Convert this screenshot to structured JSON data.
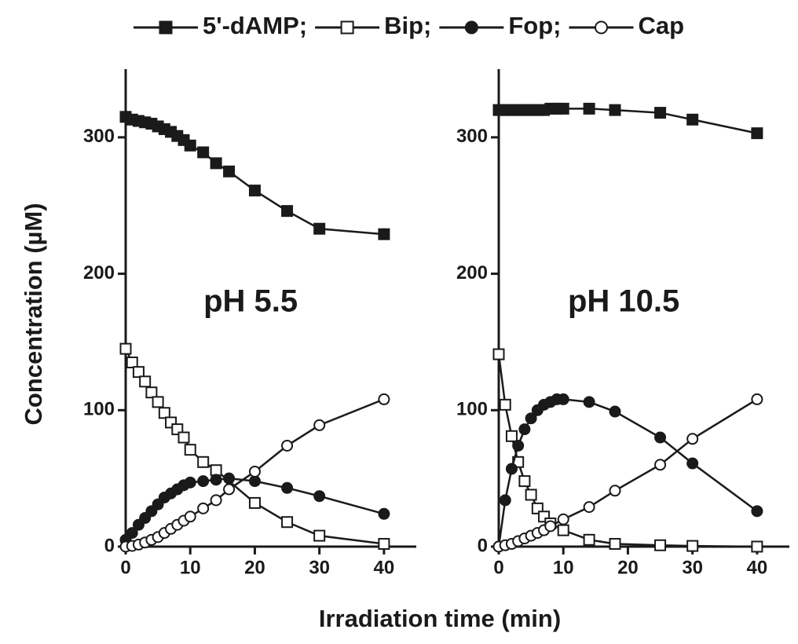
{
  "chart_data": [
    {
      "type": "line",
      "annotation": "pH 5.5",
      "xlabel": "Irradiation time (min)",
      "ylabel": "Concentration (µM)",
      "xlim": [
        0,
        45
      ],
      "ylim": [
        0,
        350
      ],
      "xticks": [
        0,
        10,
        20,
        30,
        40
      ],
      "yticks": [
        0,
        100,
        200,
        300
      ],
      "series": [
        {
          "name": "5'-dAMP;",
          "color": "#1a1a1a",
          "marker": "square",
          "filled": true,
          "x": [
            0,
            1,
            2,
            3,
            4,
            5,
            6,
            7,
            8,
            9,
            10,
            12,
            14,
            16,
            20,
            25,
            30,
            40
          ],
          "values": [
            315,
            313,
            312,
            311,
            310,
            308,
            306,
            304,
            301,
            298,
            294,
            289,
            281,
            275,
            261,
            246,
            233,
            229
          ]
        },
        {
          "name": "Bip;",
          "color": "#1a1a1a",
          "marker": "square",
          "filled": false,
          "x": [
            0,
            1,
            2,
            3,
            4,
            5,
            6,
            7,
            8,
            9,
            10,
            12,
            14,
            20,
            25,
            30,
            40
          ],
          "values": [
            145,
            135,
            128,
            121,
            113,
            106,
            98,
            91,
            86,
            80,
            71,
            62,
            56,
            32,
            18,
            8,
            2
          ]
        },
        {
          "name": "Fop;",
          "color": "#1a1a1a",
          "marker": "circle",
          "filled": true,
          "x": [
            0,
            1,
            2,
            3,
            4,
            5,
            6,
            7,
            8,
            9,
            10,
            12,
            14,
            16,
            20,
            25,
            30,
            40
          ],
          "values": [
            5,
            10,
            16,
            21,
            26,
            31,
            36,
            39,
            42,
            45,
            47,
            48,
            49,
            50,
            48,
            43,
            37,
            24
          ]
        },
        {
          "name": "Cap",
          "color": "#1a1a1a",
          "marker": "circle",
          "filled": false,
          "x": [
            0,
            1,
            2,
            3,
            4,
            5,
            6,
            7,
            8,
            9,
            10,
            12,
            14,
            16,
            20,
            25,
            30,
            40
          ],
          "values": [
            0,
            0.5,
            1.5,
            3,
            5,
            7,
            10,
            13,
            16,
            19,
            22,
            28,
            34,
            42,
            55,
            74,
            89,
            108
          ]
        }
      ]
    },
    {
      "type": "line",
      "annotation": "pH 10.5",
      "xlim": [
        0,
        45
      ],
      "ylim": [
        0,
        350
      ],
      "xticks": [
        0,
        10,
        20,
        30,
        40
      ],
      "yticks": [
        0,
        100,
        200,
        300
      ],
      "series": [
        {
          "color": "#1a1a1a",
          "marker": "square",
          "filled": true,
          "x": [
            0,
            1,
            2,
            3,
            4,
            5,
            6,
            7,
            8,
            9,
            10,
            14,
            18,
            25,
            30,
            40
          ],
          "values": [
            320,
            320,
            320,
            320,
            320,
            320,
            320,
            320,
            321,
            321,
            321,
            321,
            320,
            318,
            313,
            303
          ]
        },
        {
          "color": "#1a1a1a",
          "marker": "square",
          "filled": false,
          "x": [
            0,
            1,
            2,
            3,
            4,
            5,
            6,
            7,
            8,
            10,
            14,
            18,
            25,
            30,
            40
          ],
          "values": [
            141,
            104,
            81,
            62,
            48,
            38,
            28,
            22,
            17,
            12,
            5,
            2,
            1,
            0.5,
            0
          ]
        },
        {
          "color": "#1a1a1a",
          "marker": "circle",
          "filled": true,
          "x": [
            0,
            1,
            2,
            3,
            4,
            5,
            6,
            7,
            8,
            9,
            10,
            14,
            18,
            25,
            30,
            40
          ],
          "values": [
            0,
            34,
            57,
            74,
            86,
            94,
            100,
            104,
            106,
            108,
            108,
            106,
            99,
            80,
            61,
            26
          ]
        },
        {
          "color": "#1a1a1a",
          "marker": "circle",
          "filled": false,
          "x": [
            0,
            1,
            2,
            3,
            4,
            5,
            6,
            7,
            8,
            10,
            14,
            18,
            25,
            30,
            40
          ],
          "values": [
            0,
            1,
            2,
            4,
            6,
            8,
            10,
            12,
            15,
            20,
            29,
            41,
            60,
            79,
            108
          ]
        }
      ]
    }
  ]
}
